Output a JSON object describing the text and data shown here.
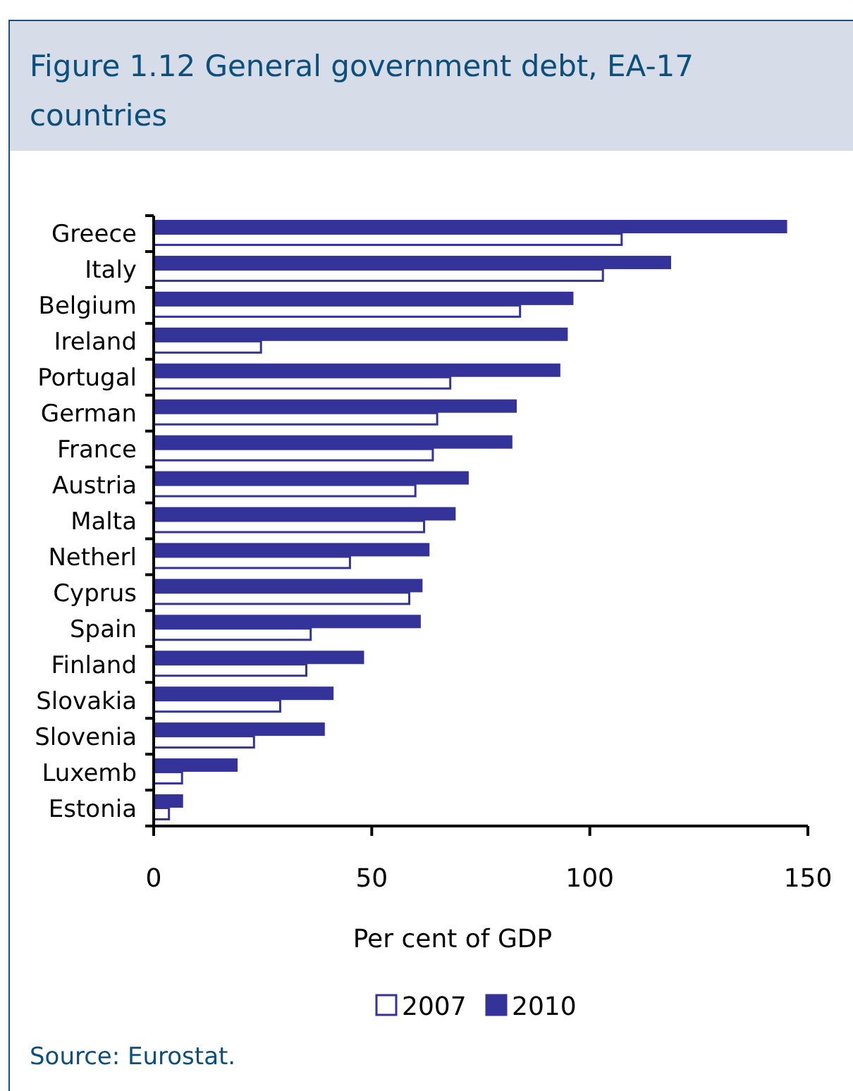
{
  "chart_data": {
    "type": "bar",
    "orientation": "horizontal",
    "title": "Figure 1.12 General government debt, EA-17 countries",
    "xlabel": "Per cent of GDP",
    "categories": [
      "Greece",
      "Italy",
      "Belgium",
      "Ireland",
      "Portugal",
      "German",
      "France",
      "Austria",
      "Malta",
      "Netherl",
      "Cyprus",
      "Spain",
      "Finland",
      "Slovakia",
      "Slovenia",
      "Luxemb",
      "Estonia"
    ],
    "series": [
      {
        "name": "2007",
        "color": "#ffffff",
        "values": [
          107.3,
          103,
          84,
          24.6,
          68,
          65,
          64,
          60,
          62,
          45,
          58.6,
          36,
          35,
          29,
          23,
          6.5,
          3.5
        ]
      },
      {
        "name": "2010",
        "color": "#333399",
        "values": [
          145,
          118.4,
          96,
          94.7,
          93,
          83,
          82,
          72,
          69,
          63,
          61.4,
          61,
          48,
          41,
          39,
          19,
          6.5
        ]
      }
    ],
    "xlim": [
      0,
      150
    ],
    "xticks": [
      0,
      50,
      100,
      150
    ],
    "grid": false,
    "legend": "bottom",
    "annotations": [
      "Source: Eurostat."
    ]
  }
}
